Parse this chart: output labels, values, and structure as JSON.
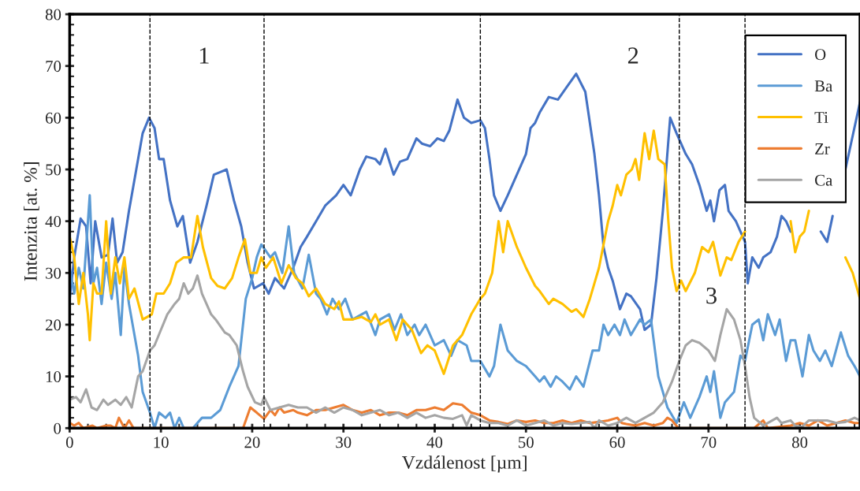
{
  "chart_data": {
    "type": "line",
    "xlabel": "Vzdálenost [µm]",
    "ylabel": "Intenzita [at. %]",
    "xlim": [
      0,
      86.6
    ],
    "ylim": [
      0,
      80
    ],
    "xticks": [
      0,
      10,
      20,
      30,
      40,
      50,
      60,
      70,
      80
    ],
    "yticks": [
      0,
      10,
      20,
      30,
      40,
      50,
      60,
      70,
      80
    ],
    "grid": false,
    "legend": "top right",
    "line_style": "solid",
    "marker": "none",
    "ref_lines": [
      {
        "axis": "x",
        "value": 8.8,
        "label": null,
        "color": "#000000",
        "line_style": "dashed"
      },
      {
        "axis": "x",
        "value": 21.3,
        "label": null,
        "color": "#000000",
        "line_style": "dashed"
      },
      {
        "axis": "x",
        "value": 45,
        "label": null,
        "color": "#000000",
        "line_style": "dashed"
      },
      {
        "axis": "x",
        "value": 66.8,
        "label": null,
        "color": "#000000",
        "line_style": "dashed"
      },
      {
        "axis": "x",
        "value": 74.0,
        "label": null,
        "color": "#000000",
        "line_style": "dashed"
      }
    ],
    "annotations": [
      "1",
      "2",
      "3"
    ],
    "series": [
      {
        "name": "O",
        "color": "#4472c4",
        "x": [
          0,
          0.5,
          1.2,
          1.8,
          2.3,
          2.8,
          3.5,
          4.2,
          4.7,
          5.2,
          5.8,
          6.5,
          7.3,
          8,
          8.7,
          9.3,
          9.8,
          10.3,
          11,
          11.8,
          12.4,
          13.2,
          14,
          15,
          15.8,
          16.5,
          17.2,
          18,
          18.8,
          19.5,
          20.2,
          21.2,
          21.8,
          22.5,
          23.5,
          24.5,
          25.3,
          26,
          27,
          28,
          29.2,
          30,
          30.8,
          31.8,
          32.5,
          33.5,
          34,
          34.6,
          35.5,
          36.2,
          37,
          38,
          38.6,
          39.5,
          40.3,
          41,
          41.6,
          42.5,
          43.2,
          44,
          45,
          45.5,
          46,
          46.5,
          47.2,
          48,
          49,
          50,
          50.5,
          51,
          51.5,
          52.5,
          53.5,
          54.5,
          55.5,
          56.5,
          57.5,
          58,
          58.5,
          59,
          59.5,
          60.3,
          61,
          61.5,
          62.5,
          63,
          63.7,
          64.3,
          65,
          65.8,
          66.5,
          67.5,
          68.2,
          69,
          69.8,
          70.2,
          70.6,
          71.2,
          71.8,
          72.2,
          73,
          74,
          74.3,
          74.8,
          75.5,
          76,
          76.8,
          77.5,
          78,
          78.5,
          79,
          79.5,
          81,
          82.3,
          83,
          83.6,
          84.3,
          85,
          86.6
        ],
        "values": [
          25,
          33,
          40.5,
          39,
          28,
          40,
          33,
          33.5,
          40.5,
          32,
          34,
          42,
          50,
          57,
          60,
          58,
          52,
          52,
          44,
          39,
          41,
          32,
          36,
          43,
          49,
          49.5,
          50,
          44,
          39,
          32,
          27,
          28,
          26,
          29,
          27,
          31,
          35,
          37,
          40,
          43,
          45,
          47,
          45,
          50,
          52.5,
          52,
          51,
          54,
          49,
          51.5,
          52,
          56,
          55,
          54.5,
          56,
          55.5,
          57.5,
          63.5,
          60,
          59,
          59.5,
          58,
          52,
          45,
          42,
          45,
          49,
          53,
          58,
          59,
          61,
          64,
          63.5,
          66,
          68.5,
          65,
          53,
          45,
          35,
          31,
          28.5,
          23,
          26,
          25.5,
          23,
          19,
          20,
          29,
          42,
          60,
          57,
          53,
          51,
          47,
          42,
          44,
          40,
          46,
          47,
          42,
          40,
          36,
          28,
          33,
          31,
          33,
          34,
          37,
          41,
          40,
          38,
          null,
          null,
          38,
          36,
          41,
          null,
          50,
          63
        ]
      },
      {
        "name": "Ba",
        "color": "#5b9bd5",
        "x": [
          0,
          0.5,
          1,
          1.5,
          2.2,
          2.6,
          3,
          3.5,
          4,
          4.6,
          5,
          5.6,
          6,
          6.5,
          7,
          7.5,
          8,
          8.8,
          9.3,
          9.8,
          10.5,
          11,
          11.5,
          12,
          12.5,
          13.5,
          14.5,
          15.5,
          16.5,
          17.5,
          18.5,
          19.3,
          20,
          20.5,
          21,
          22,
          22.5,
          23.3,
          24,
          24.6,
          25.5,
          26.2,
          27,
          27.5,
          28.2,
          28.8,
          29.5,
          30.2,
          31,
          31.5,
          32.5,
          33.5,
          34,
          35,
          35.6,
          36.3,
          37,
          37.8,
          38.3,
          39,
          40,
          41,
          41.8,
          42.5,
          43.5,
          44,
          45,
          46,
          46.5,
          47.2,
          48,
          49,
          50,
          51,
          51.5,
          52,
          52.7,
          53.3,
          54,
          54.8,
          55.5,
          56.3,
          57.3,
          58,
          58.5,
          59,
          59.7,
          60.3,
          60.8,
          61.5,
          62.5,
          63,
          63.7,
          64.5,
          65.5,
          66.5,
          67.3,
          68,
          69,
          69.8,
          70.2,
          70.6,
          71.3,
          71.8,
          72.8,
          73.5,
          74,
          74.8,
          75.5,
          76,
          76.5,
          77.3,
          77.8,
          78.5,
          79,
          79.5,
          80.3,
          81,
          81.5,
          82.2,
          82.8,
          83.5,
          84.5,
          85.3,
          86,
          86.6
        ],
        "values": [
          31,
          26,
          31,
          27,
          45,
          28,
          31,
          24,
          32,
          25,
          30,
          18,
          31,
          24,
          19,
          14,
          7,
          3,
          0,
          3,
          2,
          3,
          0,
          2,
          0,
          0,
          2,
          2,
          3.5,
          8,
          12,
          25,
          29,
          33,
          35.5,
          33,
          34,
          30,
          39,
          30,
          27,
          33.5,
          26,
          25,
          22,
          25,
          23,
          25,
          21,
          21.5,
          22.5,
          18,
          21,
          22,
          19,
          22,
          18,
          20,
          18,
          20,
          16,
          17,
          14,
          17,
          16,
          13,
          13,
          10,
          12,
          20,
          15,
          13,
          12,
          10,
          9,
          10,
          8,
          10,
          9,
          7.5,
          10,
          8,
          15,
          15,
          20,
          18,
          20,
          18,
          21,
          18,
          21,
          20,
          21,
          10,
          4,
          1,
          5,
          2,
          6,
          10,
          7,
          11,
          2,
          5,
          7,
          14,
          13,
          20,
          21,
          17,
          22,
          18,
          21,
          13,
          17,
          17,
          10,
          18,
          15,
          13,
          15,
          12,
          18.5,
          14,
          12,
          10
        ]
      },
      {
        "name": "Ti",
        "color": "#ffc000",
        "x": [
          0,
          0.5,
          1,
          1.5,
          2,
          2.2,
          2.6,
          3,
          3.5,
          4,
          4.5,
          5,
          5.5,
          6,
          6.5,
          7.1,
          8,
          8.5,
          9,
          9.5,
          10.3,
          11,
          11.7,
          12.5,
          13.3,
          14,
          14.6,
          15.5,
          16.2,
          17,
          17.8,
          18.5,
          19.2,
          19.8,
          20.5,
          21,
          21.5,
          22.3,
          23.2,
          24,
          24.8,
          25.5,
          26.2,
          27,
          28,
          29,
          29.5,
          30,
          31,
          32,
          33,
          33.5,
          34,
          35,
          35.8,
          36.5,
          37.5,
          38.5,
          39.2,
          40,
          41,
          42,
          43,
          44,
          45,
          45.5,
          46.3,
          47,
          47.5,
          48,
          49,
          50,
          51,
          51.5,
          52.5,
          53,
          54,
          55,
          55.5,
          56.3,
          57,
          58,
          59,
          59.5,
          60,
          60.4,
          61,
          61.6,
          62,
          62.4,
          63,
          63.5,
          64,
          64.5,
          65.2,
          65.6,
          66,
          66.5,
          67,
          67.5,
          68.5,
          69.3,
          70,
          70.5,
          71.3,
          72,
          72.5,
          73.3,
          74,
          74.5,
          75.5,
          76.5,
          77.5,
          78.3,
          79,
          79.5,
          80,
          80.5,
          81,
          81.8,
          82.5,
          84,
          85,
          85.8,
          86.6
        ],
        "values": [
          37,
          33,
          24,
          30,
          22,
          17,
          28,
          26,
          26,
          40,
          26,
          33,
          28,
          33,
          25,
          27,
          21,
          21.5,
          22,
          26,
          26,
          28,
          32,
          33,
          33,
          41,
          35,
          29,
          27.5,
          27,
          29,
          33,
          36.5,
          30,
          30,
          33,
          31,
          33,
          28,
          31.5,
          29,
          28,
          25.5,
          27,
          24,
          23,
          24.5,
          21,
          21,
          21.5,
          20.5,
          22,
          20,
          21,
          17,
          21,
          19,
          14.5,
          16,
          15,
          10.5,
          16,
          18,
          22,
          25,
          26,
          30,
          40,
          34,
          40,
          35,
          31,
          27.5,
          26.5,
          24,
          25,
          24,
          22.5,
          23,
          21.5,
          25,
          31,
          40,
          43,
          47,
          45,
          49,
          50,
          52,
          48,
          57,
          52,
          57.5,
          52,
          51,
          40,
          31,
          26.5,
          28.5,
          26.5,
          30,
          35,
          34,
          36,
          29.5,
          33,
          32.5,
          36,
          38,
          null,
          null,
          null,
          null,
          null,
          40,
          34,
          37,
          38,
          42,
          null,
          null,
          null,
          33,
          30,
          25
        ]
      },
      {
        "name": "Zr",
        "color": "#ed7d31",
        "x": [
          0,
          0.5,
          1,
          1.5,
          2.5,
          3,
          4,
          4.5,
          5,
          5.4,
          6,
          6.5,
          7,
          8,
          19,
          19.8,
          20.5,
          21.3,
          22,
          22.5,
          23,
          23.5,
          24.5,
          25,
          26,
          27,
          28,
          29,
          30,
          31,
          32,
          33,
          34,
          35,
          36,
          37,
          38,
          39,
          40,
          41,
          42,
          43,
          44,
          45,
          46,
          47,
          48,
          49,
          50,
          51,
          52,
          53,
          54,
          55,
          56,
          57,
          58,
          59,
          60,
          60.5,
          61,
          62,
          63,
          64,
          65,
          65.5,
          66,
          66.7,
          75,
          76,
          76.5,
          79,
          80,
          81,
          82,
          83,
          84,
          85,
          86,
          86.6
        ],
        "values": [
          1,
          0.5,
          1,
          0,
          0.5,
          0,
          0.5,
          0.5,
          0,
          2,
          0,
          1.5,
          0,
          0,
          0,
          4,
          3,
          1.8,
          3.5,
          2.5,
          4,
          3,
          3.5,
          3,
          2.5,
          3.5,
          3.5,
          4,
          4.5,
          3.5,
          3,
          3.5,
          2.5,
          3,
          3,
          2.5,
          3.5,
          3.5,
          4,
          3.5,
          4.8,
          4.5,
          3,
          2.5,
          1.5,
          1.2,
          0.8,
          1.5,
          1.2,
          1.5,
          1,
          1,
          1.5,
          1,
          1.5,
          1,
          1.2,
          1.5,
          2,
          1,
          0.8,
          0.5,
          1,
          0.5,
          1,
          2,
          1.5,
          0,
          0,
          1.5,
          0,
          0.5,
          1,
          0.5,
          1.5,
          0.5,
          1,
          1.5,
          1,
          1
        ]
      },
      {
        "name": "Ca",
        "color": "#a5a5a5",
        "x": [
          0,
          0.7,
          1.2,
          1.8,
          2.4,
          3,
          3.7,
          4.2,
          5,
          5.6,
          6.2,
          6.8,
          7.5,
          8,
          8.8,
          9.3,
          10,
          10.7,
          11.5,
          12,
          12.5,
          13,
          13.5,
          14,
          14.5,
          15.5,
          16,
          17,
          17.5,
          18.3,
          19,
          19.5,
          20.3,
          21,
          21.3,
          22,
          23,
          24,
          25,
          26,
          27,
          28,
          29,
          30,
          31,
          32,
          33,
          34,
          35,
          36,
          37,
          38,
          39,
          40,
          41,
          42,
          43,
          43.5,
          44,
          45,
          46,
          47,
          48,
          49,
          50,
          51,
          52,
          53,
          54,
          55,
          56,
          57,
          57.5,
          58,
          59,
          60,
          61,
          62,
          63,
          64,
          65,
          66,
          66.8,
          67.5,
          68.2,
          69,
          70,
          70.7,
          71.3,
          72,
          72.8,
          73.5,
          74,
          74.5,
          75,
          76,
          77,
          77.5,
          78,
          79,
          79.5,
          80.2,
          81,
          82,
          83,
          84,
          85,
          86,
          86.6
        ],
        "values": [
          5.5,
          6,
          5,
          7.5,
          4,
          3.5,
          5.5,
          4.5,
          5.5,
          4.5,
          6,
          4,
          10,
          11,
          15,
          16,
          19,
          22,
          24,
          25,
          28,
          26,
          27,
          29.5,
          26,
          22,
          21,
          18.5,
          18,
          16,
          11,
          8,
          5,
          4.5,
          6,
          3.5,
          4,
          4.5,
          4,
          4,
          3,
          4,
          3,
          4,
          3.5,
          2.5,
          3,
          3.5,
          2.5,
          3,
          2,
          3,
          2,
          2.5,
          2,
          1.8,
          2.5,
          0.5,
          2.5,
          1.5,
          1,
          1,
          0.5,
          1.5,
          0.5,
          1,
          1.5,
          0.5,
          1,
          0.8,
          1,
          1.2,
          0,
          1.5,
          0.5,
          1,
          2,
          1,
          2,
          3,
          5,
          9,
          13,
          16,
          17,
          16.5,
          15,
          13,
          18,
          23,
          21,
          17,
          12,
          6,
          2,
          0.5,
          1.5,
          2,
          1,
          1.5,
          0.5,
          0.2,
          1.5,
          1.5,
          1.5,
          1,
          1.2,
          2,
          1.5
        ]
      }
    ]
  }
}
